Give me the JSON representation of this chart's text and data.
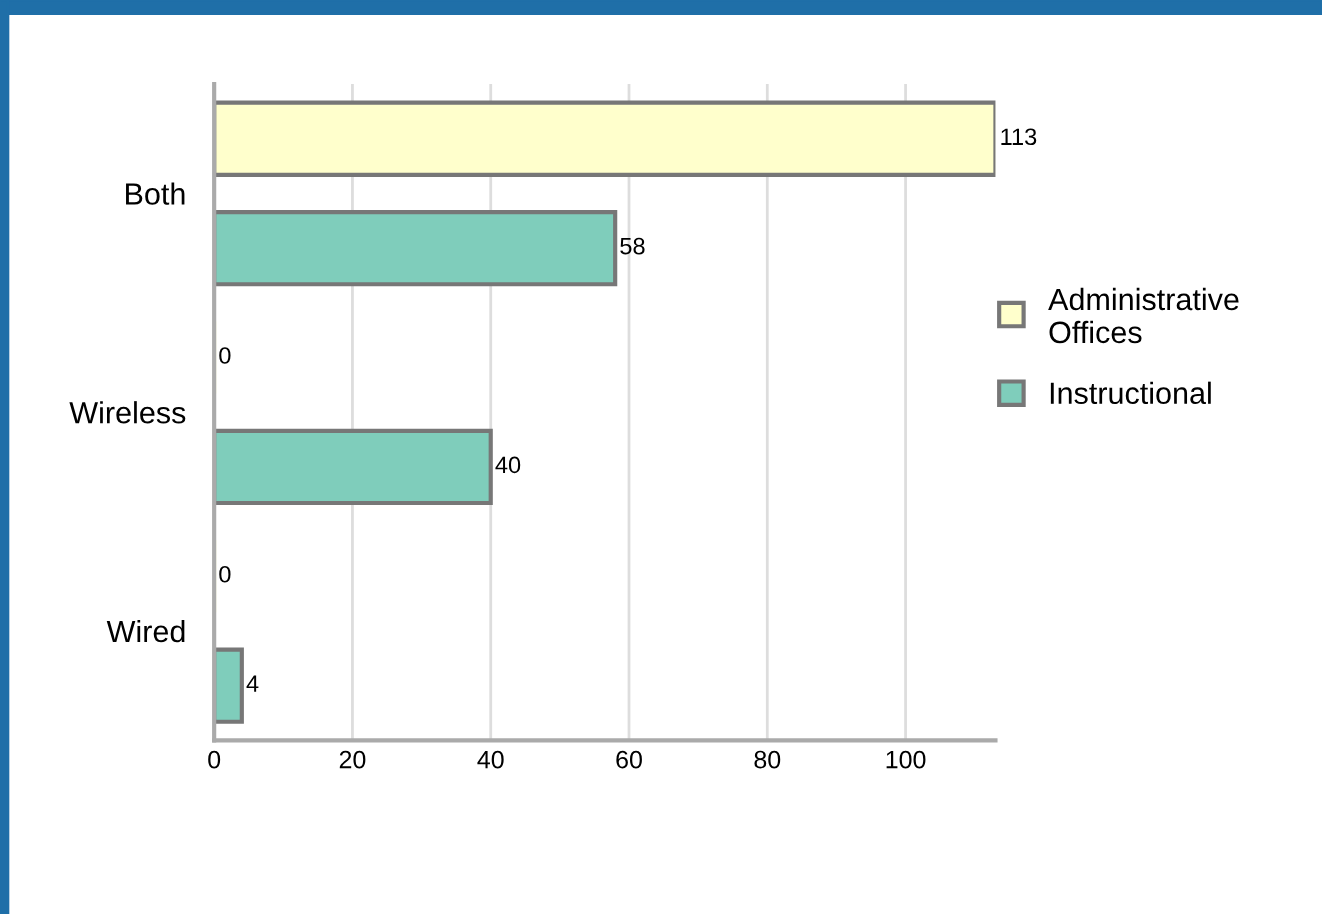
{
  "chart_data": {
    "type": "bar",
    "orientation": "horizontal",
    "categories": [
      "Both",
      "Wireless",
      "Wired"
    ],
    "series": [
      {
        "name": "Administrative Offices",
        "color": "#ffffcc",
        "values": [
          113,
          0,
          0
        ]
      },
      {
        "name": "Instructional",
        "color": "#7fcdbb",
        "values": [
          58,
          40,
          4
        ]
      }
    ],
    "xlim": [
      0,
      113
    ],
    "xticks": [
      0,
      20,
      40,
      60,
      80,
      100
    ],
    "grid": "x",
    "legend": "right",
    "data_labels": true
  }
}
